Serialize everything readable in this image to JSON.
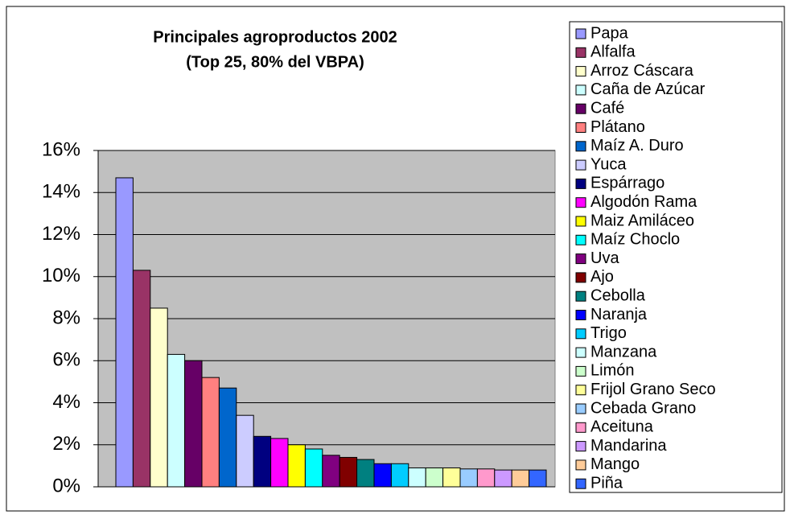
{
  "chart_data": {
    "type": "bar",
    "title": "Principales agroproductos 2002",
    "subtitle": "(Top 25, 80% del VBPA)",
    "categories": [
      "Papa",
      "Alfalfa",
      "Arroz Cáscara",
      "Caña de Azúcar",
      "Café",
      "Plátano",
      "Maíz A. Duro",
      "Yuca",
      "Espárrago",
      "Algodón Rama",
      "Maiz Amiláceo",
      "Maíz Choclo",
      "Uva",
      "Ajo",
      "Cebolla",
      "Naranja",
      "Trigo",
      "Manzana",
      "Limón",
      "Frijol Grano Seco",
      "Cebada Grano",
      "Aceituna",
      "Mandarina",
      "Mango",
      "Piña"
    ],
    "values": [
      14.7,
      10.3,
      8.5,
      6.3,
      6.0,
      5.2,
      4.7,
      3.4,
      2.4,
      2.3,
      2.0,
      1.8,
      1.5,
      1.4,
      1.3,
      1.1,
      1.1,
      0.9,
      0.9,
      0.9,
      0.85,
      0.85,
      0.8,
      0.8,
      0.8
    ],
    "colors": [
      "#9999ff",
      "#993366",
      "#ffffcc",
      "#ccffff",
      "#660066",
      "#ff8080",
      "#0066cc",
      "#ccccff",
      "#000080",
      "#ff00ff",
      "#ffff00",
      "#00ffff",
      "#800080",
      "#800000",
      "#008080",
      "#0000ff",
      "#00ccff",
      "#ccffff",
      "#ccffcc",
      "#ffff99",
      "#99ccff",
      "#ff99cc",
      "#cc99ff",
      "#ffcc99",
      "#3366ff"
    ],
    "ylim": [
      0,
      16
    ],
    "yticks": [
      {
        "value": 0,
        "label": "0%"
      },
      {
        "value": 2,
        "label": "2%"
      },
      {
        "value": 4,
        "label": "4%"
      },
      {
        "value": 6,
        "label": "6%"
      },
      {
        "value": 8,
        "label": "8%"
      },
      {
        "value": 10,
        "label": "10%"
      },
      {
        "value": 12,
        "label": "12%"
      },
      {
        "value": 14,
        "label": "14%"
      },
      {
        "value": 16,
        "label": "16%"
      }
    ],
    "grid": true,
    "plot_background": "#c0c0c0",
    "legend": "right"
  }
}
